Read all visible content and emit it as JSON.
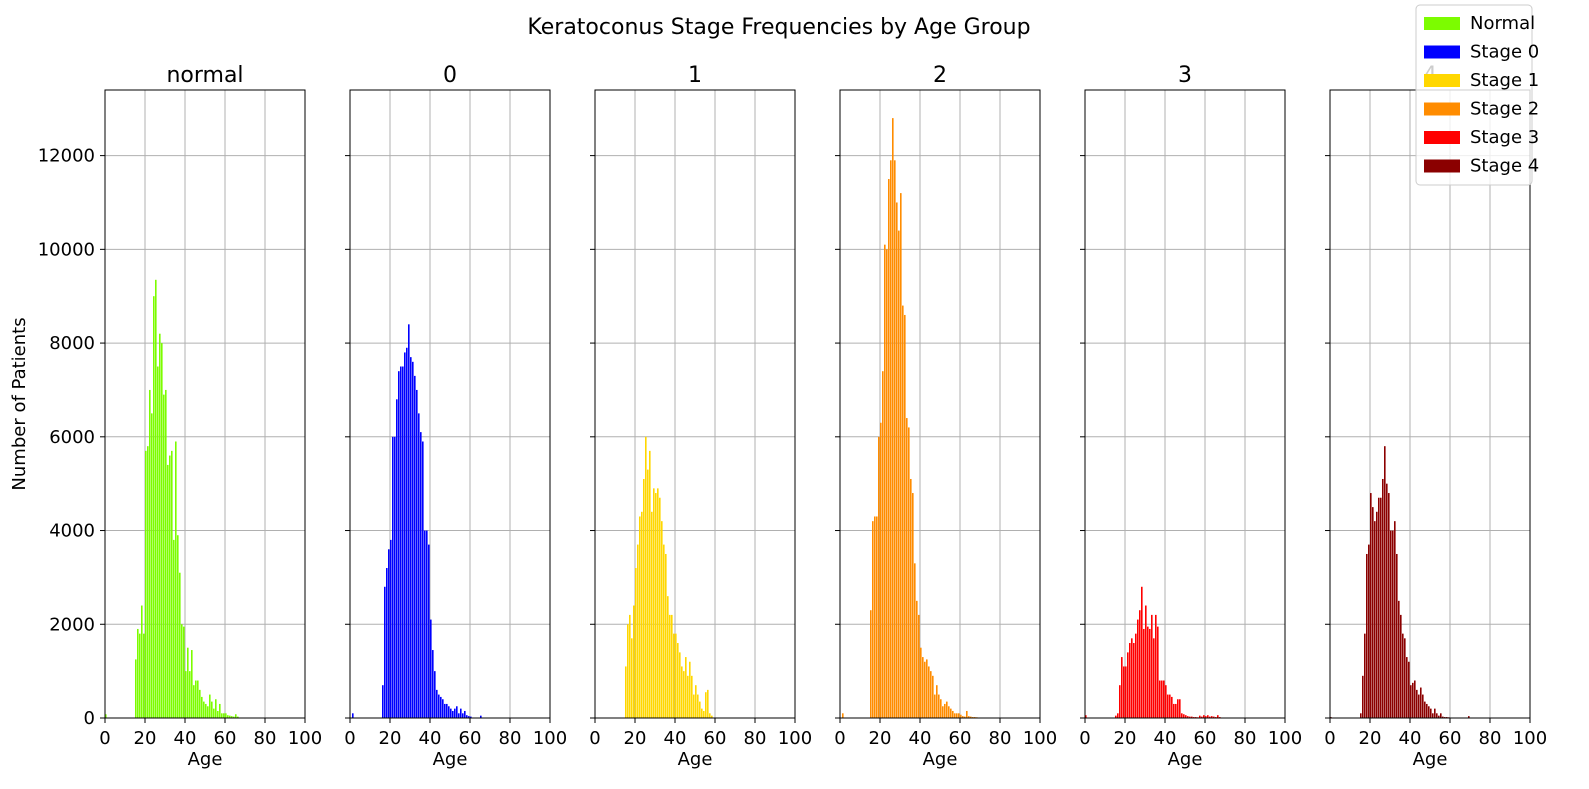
{
  "figure": {
    "title": "Keratoconus Stage Frequencies by Age Group"
  },
  "legend": {
    "placement": "top-right",
    "entries": [
      {
        "label": "Normal",
        "color": "#7CFC00"
      },
      {
        "label": "Stage 0",
        "color": "#0000FF"
      },
      {
        "label": "Stage 1",
        "color": "#FFD700"
      },
      {
        "label": "Stage 2",
        "color": "#FF8C00"
      },
      {
        "label": "Stage 3",
        "color": "#FF0000"
      },
      {
        "label": "Stage 4",
        "color": "#8B0000"
      }
    ]
  },
  "chart_data": [
    {
      "type": "bar",
      "title": "normal",
      "xlabel": "Age",
      "ylabel": "Number of Patients",
      "color": "#7CFC00",
      "xlim": [
        0,
        100
      ],
      "ylim": [
        0,
        13400
      ],
      "grid": true,
      "xticks": [
        0,
        20,
        40,
        60,
        80,
        100
      ],
      "yticks": [
        0,
        2000,
        4000,
        6000,
        8000,
        10000,
        12000
      ],
      "ages": [
        0,
        15,
        16,
        17,
        18,
        19,
        20,
        21,
        22,
        23,
        24,
        25,
        26,
        27,
        28,
        29,
        30,
        31,
        32,
        33,
        34,
        35,
        36,
        37,
        38,
        39,
        40,
        41,
        42,
        43,
        44,
        45,
        46,
        47,
        48,
        49,
        50,
        51,
        52,
        53,
        54,
        55,
        56,
        57,
        58,
        59,
        60,
        61,
        62,
        63,
        64,
        65,
        66
      ],
      "values": [
        80,
        1250,
        1900,
        1800,
        2400,
        1800,
        5700,
        5800,
        7000,
        6500,
        9000,
        9350,
        7500,
        8200,
        8000,
        6900,
        7000,
        5400,
        5600,
        5700,
        3800,
        5900,
        3900,
        3100,
        2000,
        1950,
        1000,
        1500,
        1000,
        1450,
        700,
        800,
        800,
        600,
        450,
        350,
        300,
        250,
        500,
        350,
        200,
        400,
        150,
        300,
        100,
        100,
        100,
        60,
        50,
        40,
        30,
        80,
        30
      ]
    },
    {
      "type": "bar",
      "title": "0",
      "xlabel": "Age",
      "ylabel": "",
      "color": "#0000FF",
      "xlim": [
        0,
        100
      ],
      "ylim": [
        0,
        13400
      ],
      "grid": true,
      "xticks": [
        0,
        20,
        40,
        60,
        80,
        100
      ],
      "yticks": [
        0,
        2000,
        4000,
        6000,
        8000,
        10000,
        12000
      ],
      "ages": [
        1,
        16,
        17,
        18,
        19,
        20,
        21,
        22,
        23,
        24,
        25,
        26,
        27,
        28,
        29,
        30,
        31,
        32,
        33,
        34,
        35,
        36,
        37,
        38,
        39,
        40,
        41,
        42,
        43,
        44,
        45,
        46,
        47,
        48,
        49,
        50,
        51,
        52,
        53,
        54,
        55,
        56,
        57,
        58,
        59,
        60,
        65
      ],
      "values": [
        100,
        700,
        2800,
        3200,
        3600,
        3800,
        6000,
        6000,
        6800,
        7400,
        7500,
        7500,
        7800,
        7900,
        8400,
        7700,
        7600,
        7300,
        7000,
        6500,
        6100,
        5900,
        4000,
        4000,
        3700,
        2100,
        1450,
        1000,
        600,
        500,
        450,
        400,
        300,
        300,
        250,
        200,
        150,
        200,
        250,
        100,
        200,
        100,
        150,
        60,
        40,
        30,
        50
      ]
    },
    {
      "type": "bar",
      "title": "1",
      "xlabel": "Age",
      "ylabel": "",
      "color": "#FFD700",
      "xlim": [
        0,
        100
      ],
      "ylim": [
        0,
        13400
      ],
      "grid": true,
      "xticks": [
        0,
        20,
        40,
        60,
        80,
        100
      ],
      "yticks": [
        0,
        2000,
        4000,
        6000,
        8000,
        10000,
        12000
      ],
      "ages": [
        15,
        16,
        17,
        18,
        19,
        20,
        21,
        22,
        23,
        24,
        25,
        26,
        27,
        28,
        29,
        30,
        31,
        32,
        33,
        34,
        35,
        36,
        37,
        38,
        39,
        40,
        41,
        42,
        43,
        44,
        45,
        46,
        47,
        48,
        49,
        50,
        51,
        52,
        53,
        54,
        55,
        56,
        57,
        58
      ],
      "values": [
        1100,
        2000,
        2200,
        1700,
        2400,
        3200,
        3700,
        4300,
        4400,
        5100,
        6000,
        5300,
        5700,
        4400,
        4900,
        4800,
        4900,
        4700,
        4200,
        3700,
        3500,
        2600,
        2200,
        2200,
        1800,
        1800,
        1600,
        1400,
        1100,
        1000,
        1300,
        900,
        1200,
        900,
        500,
        700,
        500,
        350,
        200,
        150,
        550,
        600,
        100,
        50
      ]
    },
    {
      "type": "bar",
      "title": "2",
      "xlabel": "Age",
      "ylabel": "",
      "color": "#FF8C00",
      "xlim": [
        0,
        100
      ],
      "ylim": [
        0,
        13400
      ],
      "grid": true,
      "xticks": [
        0,
        20,
        40,
        60,
        80,
        100
      ],
      "yticks": [
        0,
        2000,
        4000,
        6000,
        8000,
        10000,
        12000
      ],
      "ages": [
        1,
        15,
        16,
        17,
        18,
        19,
        20,
        21,
        22,
        23,
        24,
        25,
        26,
        27,
        28,
        29,
        30,
        31,
        32,
        33,
        34,
        35,
        36,
        37,
        38,
        39,
        40,
        41,
        42,
        43,
        44,
        45,
        46,
        47,
        48,
        49,
        50,
        51,
        52,
        53,
        54,
        55,
        56,
        57,
        58,
        59,
        60,
        61,
        62,
        63,
        64,
        65,
        66,
        67,
        68,
        69
      ],
      "values": [
        100,
        2300,
        4200,
        4300,
        4300,
        6000,
        6300,
        7400,
        10100,
        10000,
        11500,
        11900,
        12800,
        11900,
        11000,
        10400,
        11200,
        8800,
        8600,
        6400,
        6200,
        5100,
        4800,
        3300,
        2500,
        2200,
        1500,
        1300,
        1200,
        1250,
        1100,
        1000,
        900,
        500,
        700,
        500,
        400,
        250,
        300,
        350,
        250,
        200,
        150,
        100,
        100,
        100,
        70,
        40,
        30,
        150,
        40,
        30,
        20,
        20,
        15,
        10
      ]
    },
    {
      "type": "bar",
      "title": "3",
      "xlabel": "Age",
      "ylabel": "",
      "color": "#FF0000",
      "xlim": [
        0,
        100
      ],
      "ylim": [
        0,
        13400
      ],
      "grid": true,
      "xticks": [
        0,
        20,
        40,
        60,
        80,
        100
      ],
      "yticks": [
        0,
        2000,
        4000,
        6000,
        8000,
        10000,
        12000
      ],
      "ages": [
        0,
        15,
        16,
        17,
        18,
        19,
        20,
        21,
        22,
        23,
        24,
        25,
        26,
        27,
        28,
        29,
        30,
        31,
        32,
        33,
        34,
        35,
        36,
        37,
        38,
        39,
        40,
        41,
        42,
        43,
        44,
        45,
        46,
        47,
        48,
        49,
        50,
        51,
        52,
        53,
        54,
        55,
        56,
        57,
        58,
        59,
        60,
        61,
        62,
        63,
        64,
        65,
        66,
        67
      ],
      "values": [
        60,
        50,
        100,
        700,
        1300,
        1100,
        1100,
        1400,
        1600,
        1700,
        1600,
        1800,
        2100,
        2300,
        2800,
        1900,
        2400,
        1950,
        1900,
        2200,
        1700,
        2200,
        1950,
        800,
        800,
        800,
        700,
        500,
        500,
        450,
        300,
        300,
        400,
        400,
        100,
        80,
        60,
        40,
        30,
        30,
        20,
        20,
        15,
        50,
        30,
        60,
        40,
        60,
        30,
        40,
        30,
        20,
        60,
        20
      ]
    },
    {
      "type": "bar",
      "title": "4",
      "xlabel": "Age",
      "ylabel": "",
      "color": "#8B0000",
      "xlim": [
        0,
        100
      ],
      "ylim": [
        0,
        13400
      ],
      "grid": true,
      "xticks": [
        0,
        20,
        40,
        60,
        80,
        100
      ],
      "yticks": [
        0,
        2000,
        4000,
        6000,
        8000,
        10000,
        12000
      ],
      "ages": [
        0,
        15,
        16,
        17,
        18,
        19,
        20,
        21,
        22,
        23,
        24,
        25,
        26,
        27,
        28,
        29,
        30,
        31,
        32,
        33,
        34,
        35,
        36,
        37,
        38,
        39,
        40,
        41,
        42,
        43,
        44,
        45,
        46,
        47,
        48,
        49,
        50,
        51,
        52,
        53,
        54,
        55,
        56,
        57,
        58,
        59,
        60,
        65,
        69
      ],
      "values": [
        20,
        100,
        900,
        1800,
        3500,
        3700,
        4800,
        4500,
        4200,
        4400,
        4700,
        4700,
        5100,
        5800,
        5000,
        4800,
        4000,
        4000,
        4200,
        3500,
        2500,
        2200,
        1800,
        1700,
        1300,
        1200,
        700,
        750,
        800,
        600,
        500,
        650,
        500,
        350,
        300,
        250,
        200,
        100,
        200,
        100,
        50,
        100,
        30,
        20,
        20,
        15,
        10,
        10,
        40
      ]
    }
  ]
}
